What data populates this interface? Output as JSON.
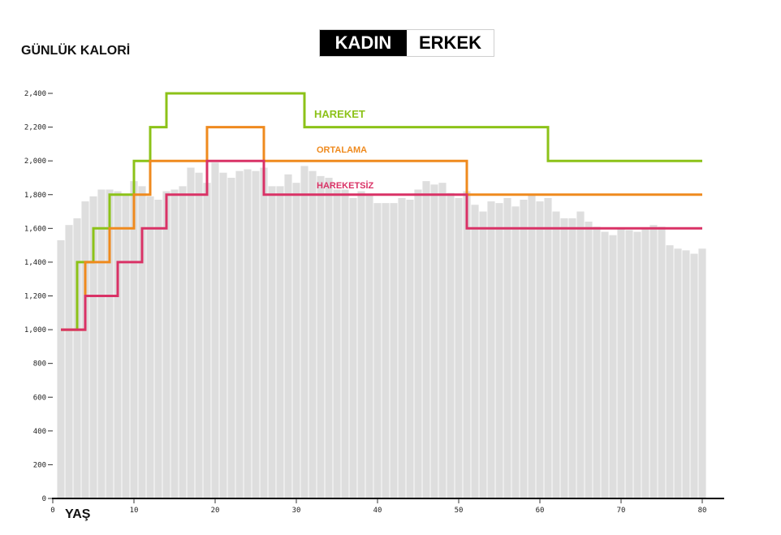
{
  "toggle": {
    "female_label": "KADIN",
    "male_label": "ERKEK",
    "selected": "KADIN"
  },
  "chart_data": {
    "type": "bar",
    "ylabel": "GÜNLÜK KALORİ",
    "xlabel": "YAŞ",
    "xlim": [
      0,
      80
    ],
    "ylim": [
      0,
      2400
    ],
    "x_ticks": [
      0,
      10,
      20,
      30,
      40,
      50,
      60,
      70,
      80
    ],
    "y_ticks": [
      0,
      200,
      400,
      600,
      800,
      1000,
      1200,
      1400,
      1600,
      1800,
      2000,
      2200,
      2400
    ],
    "y_tick_labels": [
      "0",
      "200",
      "400",
      "600",
      "800",
      "1,000",
      "1,200",
      "1,400",
      "1,600",
      "1,800",
      "2,000",
      "2,200",
      "2,400"
    ],
    "bars": {
      "color": "#dedede",
      "x": [
        1,
        2,
        3,
        4,
        5,
        6,
        7,
        8,
        9,
        10,
        11,
        12,
        13,
        14,
        15,
        16,
        17,
        18,
        19,
        20,
        21,
        22,
        23,
        24,
        25,
        26,
        27,
        28,
        29,
        30,
        31,
        32,
        33,
        34,
        35,
        36,
        37,
        38,
        39,
        40,
        41,
        42,
        43,
        44,
        45,
        46,
        47,
        48,
        49,
        50,
        51,
        52,
        53,
        54,
        55,
        56,
        57,
        58,
        59,
        60,
        61,
        62,
        63,
        64,
        65,
        66,
        67,
        68,
        69,
        70,
        71,
        72,
        73,
        74,
        75,
        76,
        77,
        78,
        79,
        80
      ],
      "values": [
        1530,
        1620,
        1660,
        1760,
        1790,
        1830,
        1830,
        1820,
        1800,
        1880,
        1850,
        1790,
        1770,
        1820,
        1830,
        1850,
        1960,
        1930,
        1870,
        1990,
        1930,
        1900,
        1940,
        1950,
        1940,
        1960,
        1850,
        1850,
        1920,
        1870,
        1970,
        1940,
        1910,
        1900,
        1830,
        1830,
        1780,
        1820,
        1800,
        1750,
        1750,
        1750,
        1780,
        1770,
        1830,
        1880,
        1860,
        1870,
        1810,
        1780,
        1820,
        1740,
        1700,
        1760,
        1750,
        1780,
        1730,
        1770,
        1800,
        1760,
        1780,
        1700,
        1660,
        1660,
        1700,
        1640,
        1610,
        1580,
        1560,
        1600,
        1590,
        1580,
        1600,
        1620,
        1610,
        1500,
        1480,
        1470,
        1450,
        1480
      ]
    },
    "series": [
      {
        "name": "HAREKET",
        "color": "#8cc218",
        "steps": [
          [
            2,
            1000
          ],
          [
            3,
            1400
          ],
          [
            5,
            1600
          ],
          [
            7,
            1800
          ],
          [
            10,
            2000
          ],
          [
            12,
            2200
          ],
          [
            14,
            2400
          ],
          [
            31,
            2200
          ],
          [
            61,
            2000
          ],
          [
            80,
            2000
          ]
        ]
      },
      {
        "name": "ORTALAMA",
        "color": "#ef8a1e",
        "steps": [
          [
            2,
            1000
          ],
          [
            4,
            1400
          ],
          [
            7,
            1600
          ],
          [
            10,
            1800
          ],
          [
            12,
            2000
          ],
          [
            19,
            2200
          ],
          [
            26,
            2000
          ],
          [
            51,
            1800
          ],
          [
            80,
            1800
          ]
        ]
      },
      {
        "name": "HAREKETSİZ",
        "color": "#d93266",
        "steps": [
          [
            2,
            1000
          ],
          [
            4,
            1200
          ],
          [
            8,
            1400
          ],
          [
            11,
            1600
          ],
          [
            14,
            1800
          ],
          [
            19,
            2000
          ],
          [
            26,
            1800
          ],
          [
            51,
            1600
          ],
          [
            80,
            1600
          ]
        ]
      }
    ],
    "legend_placement": "inline-labels"
  }
}
